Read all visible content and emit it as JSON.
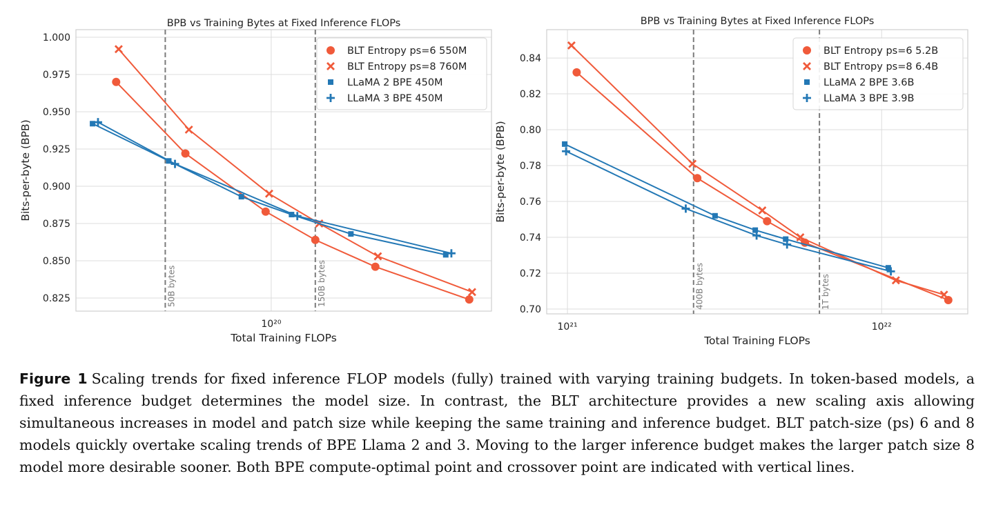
{
  "chart_data": [
    {
      "type": "line",
      "title": "BPB vs Training Bytes at Fixed Inference FLOPs",
      "xlabel": "Total Training FLOPs",
      "ylabel": "Bits-per-byte (BPB)",
      "xscale": "log",
      "grid": true,
      "legend": "upper right",
      "xlim": [
        2.4e+19,
        5e+20
      ],
      "xticks": [
        {
          "value": 1e+20,
          "label": "10²⁰"
        }
      ],
      "ylim": [
        0.8162,
        1.0051
      ],
      "yticks": [
        0.825,
        {
          "value": 0.85,
          "label": "0.850"
        },
        0.875,
        {
          "value": 0.9,
          "label": "0.900"
        },
        0.925,
        {
          "value": 0.95,
          "label": "0.950"
        },
        0.975,
        {
          "value": 1,
          "label": "1.000"
        }
      ],
      "vlines": [
        {
          "x": 4.61e+19,
          "label": "50B bytes"
        },
        {
          "x": 1.38e+20,
          "label": "150B bytes"
        }
      ],
      "series": [
        {
          "name": "BLT Entropy ps=6 550M",
          "color": "#f05a3a",
          "marker": "circle",
          "x": [
            3.22e+19,
            5.34e+19,
            9.6e+19,
            1.38e+20,
            2.14e+20,
            4.25e+20
          ],
          "values": [
            0.97,
            0.922,
            0.883,
            0.864,
            0.846,
            0.824
          ]
        },
        {
          "name": "BLT Entropy ps=8 760M",
          "color": "#f05a3a",
          "marker": "x",
          "x": [
            3.28e+19,
            5.48e+19,
            9.85e+19,
            1.42e+20,
            2.18e+20,
            4.34e+20
          ],
          "values": [
            0.992,
            0.938,
            0.895,
            0.875,
            0.853,
            0.829
          ]
        },
        {
          "name": "LLaMA 2 BPE 450M",
          "color": "#2378b5",
          "marker": "square",
          "x": [
            2.71e+19,
            4.73e+19,
            8.04e+19,
            1.16e+20,
            1.79e+20,
            3.58e+20
          ],
          "values": [
            0.942,
            0.917,
            0.893,
            0.881,
            0.868,
            0.854
          ]
        },
        {
          "name": "LLaMA 3 BPE 450M",
          "color": "#2378b5",
          "marker": "plus",
          "x": [
            2.82e+19,
            4.95e+19,
            1.21e+20,
            3.73e+20
          ],
          "values": [
            0.943,
            0.915,
            0.88,
            0.855
          ]
        }
      ]
    },
    {
      "type": "line",
      "title": "BPB vs Training Bytes at Fixed Inference FLOPs",
      "xlabel": "Total Training FLOPs",
      "ylabel": "Bits-per-byte (BPB)",
      "xscale": "log",
      "grid": true,
      "legend": "upper right",
      "xlim": [
        8.59e+20,
        1.88e+22
      ],
      "xticks": [
        {
          "value": 1e+21,
          "label": "10²¹"
        },
        {
          "value": 1e+22,
          "label": "10²²"
        }
      ],
      "ylim": [
        0.6973,
        0.8558
      ],
      "yticks": [
        {
          "value": 0.7,
          "label": "0.70"
        },
        0.72,
        0.74,
        0.76,
        0.78,
        {
          "value": 0.8,
          "label": "0.80"
        },
        0.82,
        0.84
      ],
      "vlines": [
        {
          "x": 2.52e+21,
          "label": "400B bytes"
        },
        {
          "x": 6.34e+21,
          "label": "1T bytes"
        }
      ],
      "series": [
        {
          "name": "BLT Entropy ps=6 5.2B",
          "color": "#f05a3a",
          "marker": "circle",
          "x": [
            1.07e+21,
            2.59e+21,
            4.32e+21,
            5.7e+21,
            1.63e+22
          ],
          "values": [
            0.832,
            0.773,
            0.749,
            0.737,
            0.705
          ]
        },
        {
          "name": "BLT Entropy ps=8 6.4B",
          "color": "#f05a3a",
          "marker": "x",
          "x": [
            1.03e+21,
            2.5e+21,
            4.17e+21,
            5.51e+21,
            1.11e+22,
            1.58e+22
          ],
          "values": [
            0.847,
            0.781,
            0.755,
            0.74,
            0.716,
            0.708
          ]
        },
        {
          "name": "LLaMA 2 BPE 3.6B",
          "color": "#2378b5",
          "marker": "square",
          "x": [
            9.8e+20,
            2.95e+21,
            3.96e+21,
            4.95e+21,
            1.05e+22
          ],
          "values": [
            0.792,
            0.752,
            0.744,
            0.739,
            0.723
          ]
        },
        {
          "name": "LLaMA 3 BPE 3.9B",
          "color": "#2378b5",
          "marker": "plus",
          "x": [
            9.9e+20,
            2.38e+21,
            4e+21,
            5e+21,
            1.07e+22
          ],
          "values": [
            0.788,
            0.756,
            0.741,
            0.736,
            0.721
          ]
        }
      ]
    }
  ],
  "caption": {
    "label": "Figure 1",
    "text": "Scaling trends for fixed inference FLOP models (fully) trained with varying training budgets. In token-based models, a fixed inference budget determines the model size. In contrast, the BLT architecture provides a new scaling axis allowing simultaneous increases in model and patch size while keeping the same training and inference budget. BLT patch-size (ps) 6 and 8 models quickly overtake scaling trends of BPE Llama 2 and 3. Moving to the larger inference budget makes the larger patch size 8 model more desirable sooner. Both BPE compute-optimal point and crossover point are indicated with vertical lines."
  }
}
